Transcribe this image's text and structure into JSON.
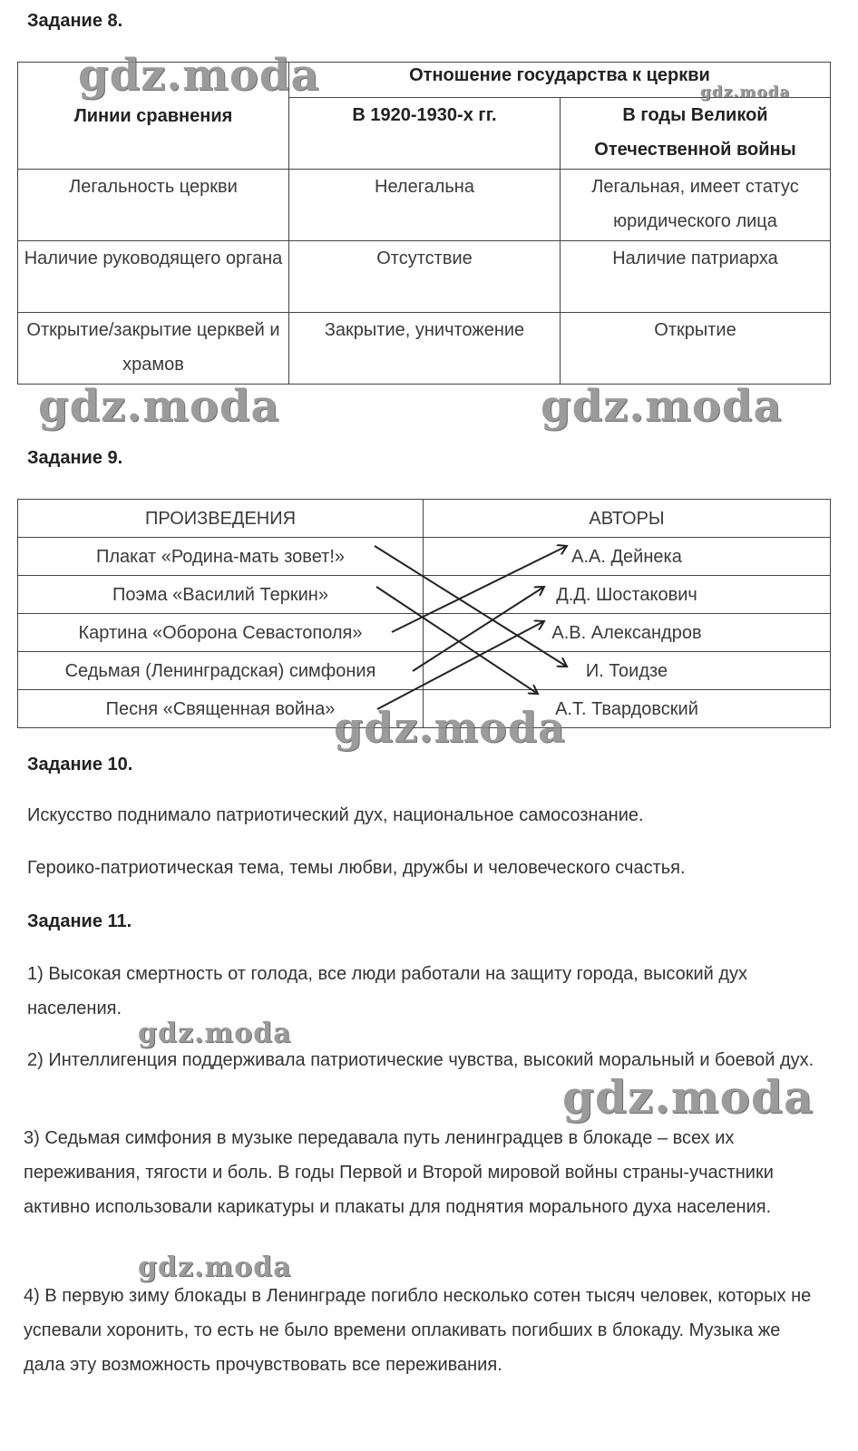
{
  "task8": {
    "heading": "Задание 8.",
    "header": {
      "criteria": "Линии сравнения",
      "group": "Отношение государства к церкви",
      "col1": "В 1920-1930-х гг.",
      "col2": "В годы Великой Отечественной войны"
    },
    "rows": [
      {
        "criterion": "Легальность церкви",
        "c1": "Нелегальна",
        "c2": "Легальная, имеет статус юридического лица"
      },
      {
        "criterion": "Наличие руководящего органа",
        "c1": "Отсутствие",
        "c2": "Наличие патриарха"
      },
      {
        "criterion": "Открытие/закрытие церквей и храмов",
        "c1": "Закрытие, уничтожение",
        "c2": "Открытие"
      }
    ]
  },
  "task9": {
    "heading": "Задание 9.",
    "header": {
      "works": "ПРОИЗВЕДЕНИЯ",
      "authors": "АВТОРЫ"
    },
    "works": [
      "Плакат «Родина-мать зовет!»",
      "Поэма «Василий Теркин»",
      "Картина «Оборона Севастополя»",
      "Седьмая (Ленинградская) симфония",
      "Песня «Священная война»"
    ],
    "authors": [
      "А.А. Дейнека",
      "Д.Д. Шостакович",
      "А.В. Александров",
      "И. Тоидзе",
      "А.Т. Твардовский"
    ],
    "matches": [
      [
        "Плакат «Родина-мать зовет!»",
        "И. Тоидзе"
      ],
      [
        "Поэма «Василий Теркин»",
        "А.Т. Твардовский"
      ],
      [
        "Картина «Оборона Севастополя»",
        "А.А. Дейнека"
      ],
      [
        "Седьмая (Ленинградская) симфония",
        "Д.Д. Шостакович"
      ],
      [
        "Песня «Священная война»",
        "А.В. Александров"
      ]
    ]
  },
  "task10": {
    "heading": "Задание 10.",
    "paragraphs": [
      "Искусство поднимало патриотический дух, национальное самосознание.",
      "Героико-патриотическая тема, темы любви, дружбы и человеческого счастья."
    ]
  },
  "task11": {
    "heading": "Задание 11.",
    "items": [
      "1) Высокая смертность от голода, все люди работали на защиту города, высокий дух населения.",
      "2) Интеллигенция поддерживала патриотические чувства, высокий моральный и боевой дух.",
      "3) Седьмая симфония в музыке передавала путь ленинградцев в блокаде – всех их переживания, тягости и боль. В годы Первой и Второй мировой войны страны-участники активно использовали карикатуры и плакаты для поднятия морального духа населения.",
      "4) В первую зиму блокады в Ленинграде погибло несколько сотен тысяч человек, которых не успевали хоронить, то есть не было времени оплакивать погибших в блокаду. Музыка же дала эту возможность прочувствовать все переживания."
    ]
  },
  "watermark": "gdz.moda"
}
